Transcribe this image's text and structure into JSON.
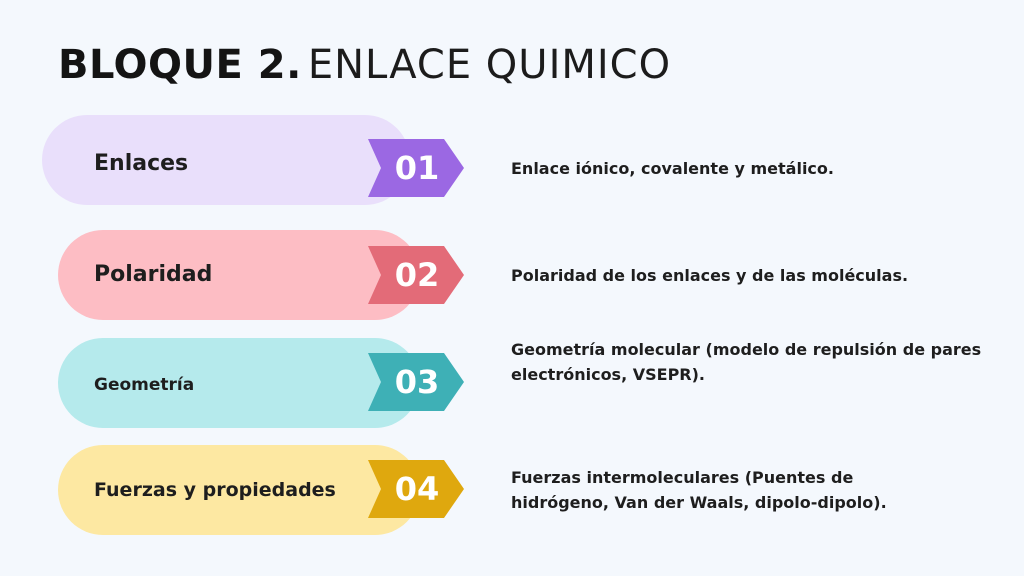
{
  "title": {
    "bold": "BLOQUE 2.",
    "light": "ENLACE QUIMICO"
  },
  "items": [
    {
      "label": "Enlaces",
      "number": "01",
      "description": "Enlace iónico, covalente y metálico.",
      "pill_color": "#e9dffb",
      "badge_color": "#9b68e3"
    },
    {
      "label": "Polaridad",
      "number": "02",
      "description": "Polaridad de los enlaces y de las moléculas.",
      "pill_color": "#fdbdc4",
      "badge_color": "#e36b78"
    },
    {
      "label": "Geometría",
      "number": "03",
      "description": "Geometría molecular (modelo de repulsión de pares electrónicos, VSEPR).",
      "pill_color": "#b5eaec",
      "badge_color": "#3eb0b6"
    },
    {
      "label": "Fuerzas y propiedades",
      "number": "04",
      "description": "Fuerzas intermoleculares (Puentes de hidrógeno, Van der Waals, dipolo-dipolo).",
      "pill_color": "#fde8a2",
      "badge_color": "#dfa80e"
    }
  ]
}
